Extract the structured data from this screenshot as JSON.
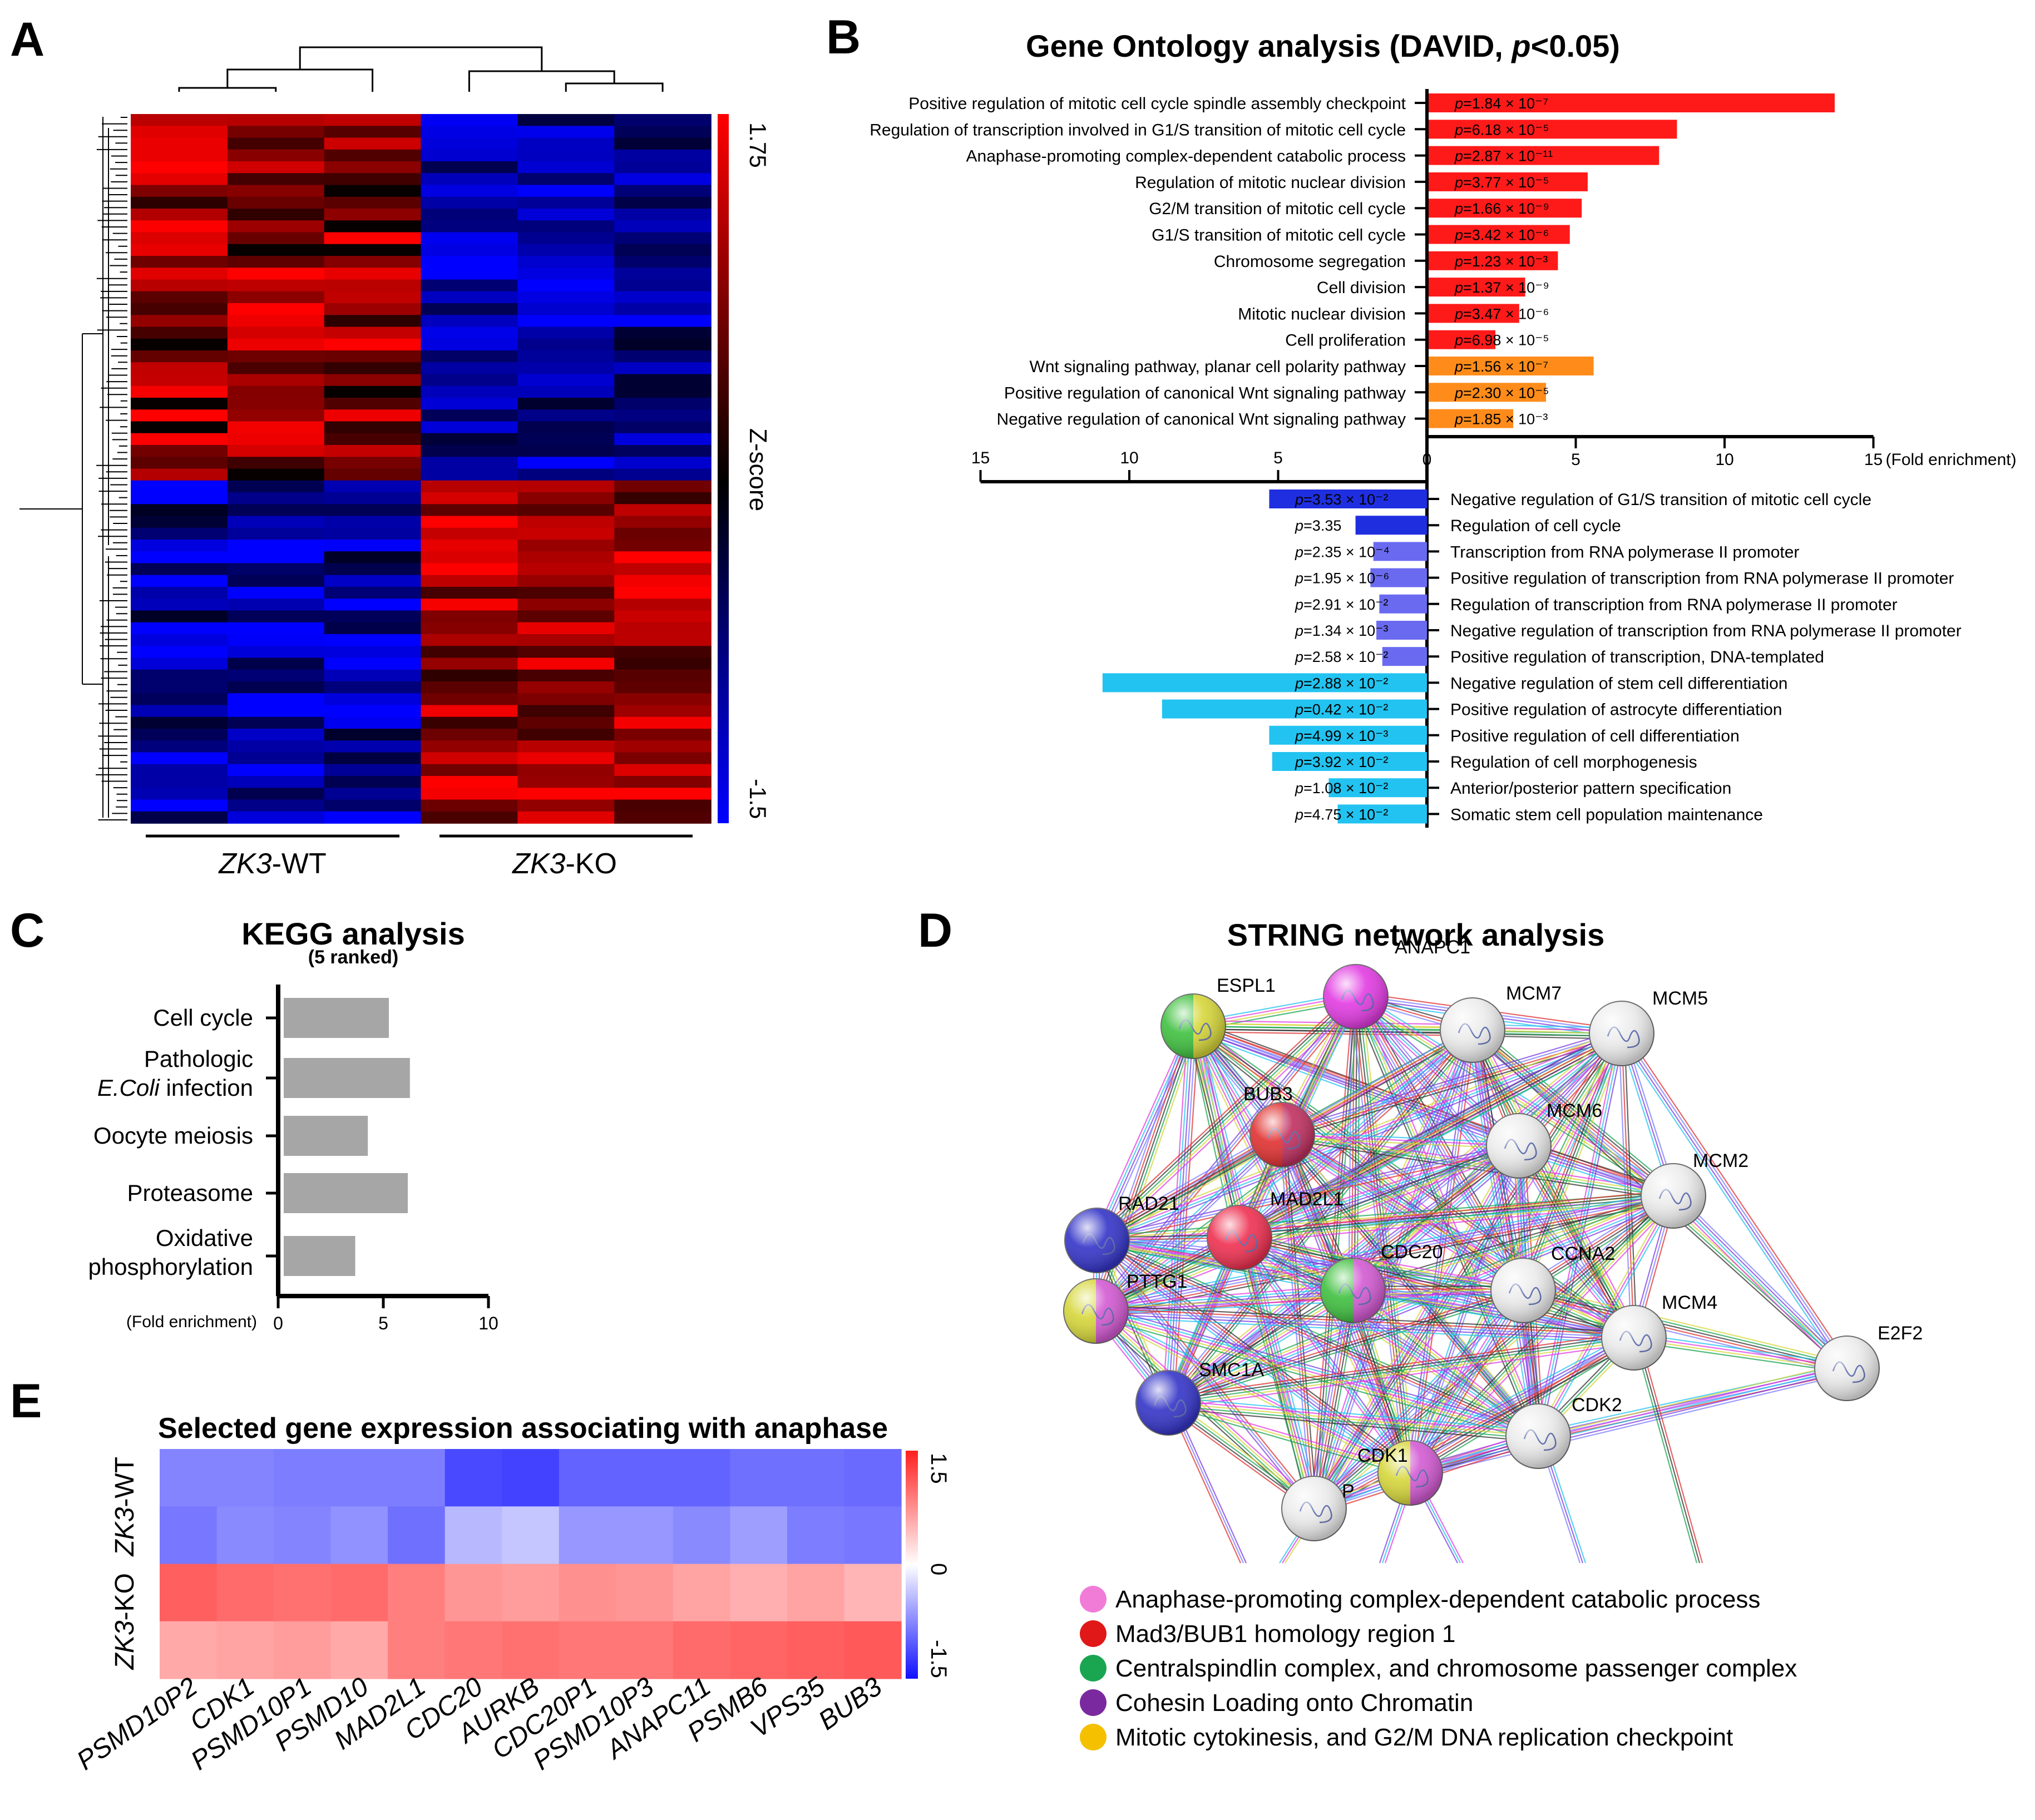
{
  "panel_letters": [
    "A",
    "B",
    "C",
    "D",
    "E"
  ],
  "colors": {
    "red": "#ff1a1a",
    "orange": "#ff8c1a",
    "dark_blue": "#1f2fe0",
    "mid_blue": "#6a6af0",
    "cyan": "#22c3f0",
    "grey_bar": "#a6a6a6"
  },
  "chart_data": [
    {
      "id": "A",
      "type": "heatmap",
      "title": "",
      "groups": [
        "ZK3-WT",
        "ZK3-KO"
      ],
      "group_prefix": "ZK3",
      "group_suffixes": [
        "-WT",
        "-KO"
      ],
      "colorbar": {
        "label": "Z-score",
        "min": -1.5,
        "max": 1.75,
        "min_label": "-1.5",
        "max_label": "1.75"
      },
      "columns": 6,
      "block_structure": "Upper gene cluster high in ZK3-WT and low in ZK3-KO; lower gene cluster low in ZK3-WT and high in ZK3-KO"
    },
    {
      "id": "B",
      "type": "bar",
      "title_prefix": "Gene Ontology analysis (DAVID, ",
      "title_p": "p",
      "title_suffix": "<0.05)",
      "axis_ticks": [
        "15",
        "10",
        "5",
        "0",
        "5",
        "10",
        "15"
      ],
      "axis_unit": "(Fold enrichment)",
      "xlim": [
        0,
        15
      ],
      "upregulated": [
        {
          "term": "Positive regulation of mitotic cell cycle spindle assembly checkpoint",
          "fold": 13.7,
          "p": "=1.84 × 10⁻⁷",
          "class": "red"
        },
        {
          "term": "Regulation of transcription involved in G1/S transition of mitotic cell cycle",
          "fold": 8.4,
          "p": "=6.18 × 10⁻⁵",
          "class": "red"
        },
        {
          "term": "Anaphase-promoting complex-dependent catabolic process",
          "fold": 7.8,
          "p": "=2.87 × 10⁻¹¹",
          "class": "red"
        },
        {
          "term": "Regulation of mitotic nuclear division",
          "fold": 5.4,
          "p": "=3.77 × 10⁻⁵",
          "class": "red"
        },
        {
          "term": "G2/M transition of mitotic cell cycle",
          "fold": 5.2,
          "p": "=1.66 × 10⁻⁹",
          "class": "red"
        },
        {
          "term": "G1/S transition of mitotic cell cycle",
          "fold": 4.8,
          "p": "=3.42 × 10⁻⁶",
          "class": "red"
        },
        {
          "term": "Chromosome segregation",
          "fold": 4.4,
          "p": "=1.23 × 10⁻³",
          "class": "red"
        },
        {
          "term": "Cell division",
          "fold": 3.3,
          "p": "=1.37 × 10⁻⁹",
          "class": "red"
        },
        {
          "term": "Mitotic nuclear division",
          "fold": 3.1,
          "p": "=3.47 × 10⁻⁶",
          "class": "red"
        },
        {
          "term": "Cell proliferation",
          "fold": 2.3,
          "p": "=6.98 × 10⁻⁵",
          "class": "red"
        },
        {
          "term": "Wnt signaling pathway, planar cell polarity pathway",
          "fold": 5.6,
          "p": "=1.56 × 10⁻⁷",
          "class": "orange"
        },
        {
          "term": "Positive regulation of canonical Wnt signaling pathway",
          "fold": 4.0,
          "p": "=2.30 × 10⁻⁵",
          "class": "orange"
        },
        {
          "term": "Negative regulation of canonical Wnt signaling pathway",
          "fold": 2.9,
          "p": "=1.85 × 10⁻³",
          "class": "orange"
        }
      ],
      "downregulated": [
        {
          "term": "Negative regulation of G1/S transition of mitotic cell cycle",
          "fold": 5.3,
          "p": "=3.53 × 10⁻²",
          "class": "dark_blue"
        },
        {
          "term": "Regulation of cell cycle",
          "fold": 2.4,
          "p": "=3.35",
          "class": "dark_blue"
        },
        {
          "term": "Transcription from RNA polymerase II promoter",
          "fold": 1.8,
          "p": "=2.35 × 10⁻⁴",
          "class": "mid_blue"
        },
        {
          "term": "Positive regulation of transcription from RNA polymerase II promoter",
          "fold": 1.9,
          "p": "=1.95 × 10⁻⁶",
          "class": "mid_blue"
        },
        {
          "term": "Regulation of transcription from RNA polymerase II promoter",
          "fold": 1.6,
          "p": "=2.91 × 10⁻²",
          "class": "mid_blue"
        },
        {
          "term": "Negative regulation of transcription from RNA polymerase II promoter",
          "fold": 1.7,
          "p": "=1.34 × 10⁻³",
          "class": "mid_blue"
        },
        {
          "term": "Positive regulation of transcription, DNA-templated",
          "fold": 1.5,
          "p": "=2.58 × 10⁻²",
          "class": "mid_blue"
        },
        {
          "term": "Negative regulation of stem cell differentiation",
          "fold": 10.9,
          "p": "=2.88 × 10⁻²",
          "class": "cyan"
        },
        {
          "term": "Positive regulation of astrocyte differentiation",
          "fold": 8.9,
          "p": "=0.42 × 10⁻²",
          "class": "cyan"
        },
        {
          "term": "Positive regulation of cell differentiation",
          "fold": 5.3,
          "p": "=4.99 × 10⁻³",
          "class": "cyan"
        },
        {
          "term": "Regulation of cell morphogenesis",
          "fold": 5.2,
          "p": "=3.92 × 10⁻²",
          "class": "cyan"
        },
        {
          "term": "Anterior/posterior pattern specification",
          "fold": 3.3,
          "p": "=1.08 × 10⁻²",
          "class": "cyan"
        },
        {
          "term": "Somatic stem cell population maintenance",
          "fold": 3.0,
          "p": "=4.75 × 10⁻²",
          "class": "cyan"
        }
      ]
    },
    {
      "id": "C",
      "type": "bar",
      "title": "KEGG analysis",
      "subtitle": "(5 ranked)",
      "xlabel": "(Fold enrichment)",
      "xlim": [
        0,
        10
      ],
      "x_ticks": [
        0,
        5,
        10
      ],
      "categories": [
        {
          "lines": [
            "Cell cycle"
          ],
          "italic_prefix": "",
          "value": 5.0
        },
        {
          "lines": [
            "Pathologic"
          ],
          "italic_prefix": "E.Coli",
          "second_line_rest": " infection",
          "value": 6.0
        },
        {
          "lines": [
            "Oocyte meiosis"
          ],
          "italic_prefix": "",
          "value": 4.0
        },
        {
          "lines": [
            "Proteasome"
          ],
          "italic_prefix": "",
          "value": 5.9
        },
        {
          "lines": [
            "Oxidative",
            "phosphorylation"
          ],
          "italic_prefix": "",
          "value": 3.4
        }
      ]
    },
    {
      "id": "D",
      "type": "network",
      "title": "STRING network analysis",
      "nodes": [
        {
          "name": "ESPL1",
          "c1": "#3fc03f",
          "c2": "#d6d63a"
        },
        {
          "name": "ANAPC1",
          "c1": "#e23be2",
          "c2": "#e23be2"
        },
        {
          "name": "MCM7",
          "c1": "#ececec",
          "c2": "#ececec"
        },
        {
          "name": "MCM5",
          "c1": "#ececec",
          "c2": "#ececec"
        },
        {
          "name": "BUB3",
          "c1": "#e03030",
          "c2": "#c03060"
        },
        {
          "name": "MCM6",
          "c1": "#ececec",
          "c2": "#ececec"
        },
        {
          "name": "MCM2",
          "c1": "#ececec",
          "c2": "#ececec"
        },
        {
          "name": "RAD21",
          "c1": "#3434c8",
          "c2": "#3434c8"
        },
        {
          "name": "MAD2L1",
          "c1": "#ee3050",
          "c2": "#ee3050"
        },
        {
          "name": "CDC20",
          "c1": "#3fc03f",
          "c2": "#d35ad3"
        },
        {
          "name": "CCNA2",
          "c1": "#ececec",
          "c2": "#ececec"
        },
        {
          "name": "PTTG1",
          "c1": "#d6d63a",
          "c2": "#d35ad3"
        },
        {
          "name": "MCM4",
          "c1": "#ececec",
          "c2": "#ececec"
        },
        {
          "name": "E2F2",
          "c1": "#ececec",
          "c2": "#ececec"
        },
        {
          "name": "SMC1A",
          "c1": "#3434c8",
          "c2": "#3434c8"
        },
        {
          "name": "CDK2",
          "c1": "#ececec",
          "c2": "#ececec"
        },
        {
          "name": "CDK1",
          "c1": "#d6d63a",
          "c2": "#d35ad3"
        },
        {
          "name": "P",
          "c1": "#ececec",
          "c2": "#ececec"
        }
      ],
      "legend": [
        {
          "label": "Anaphase-promoting complex-dependent catabolic process",
          "color": "#f07cd8"
        },
        {
          "label": "Mad3/BUB1 homology region 1",
          "color": "#e01818"
        },
        {
          "label": "Centralspindlin complex, and chromosome passenger complex",
          "color": "#1aa650"
        },
        {
          "label": "Cohesin Loading onto Chromatin",
          "color": "#7a2a9e"
        },
        {
          "label": "Mitotic cytokinesis, and G2/M DNA replication checkpoint",
          "color": "#f4c000"
        }
      ]
    },
    {
      "id": "E",
      "type": "heatmap",
      "title": "Selected gene expression associating with anaphase",
      "rows": [
        "ZK3-WT",
        "ZK3-KO"
      ],
      "row_prefix": "ZK3",
      "row_suffixes": [
        "-WT",
        "-KO"
      ],
      "columns": [
        "PSMD10P2",
        "CDK1",
        "PSMD10P1",
        "PSMD10",
        "MAD2L1",
        "CDC20",
        "AURKB",
        "CDC20P1",
        "PSMD10P3",
        "ANAPC11",
        "PSMB6",
        "VPS35",
        "BUB3"
      ],
      "colorbar": {
        "min": -1.5,
        "max": 1.5,
        "min_label": "-1.5",
        "mid_label": "0",
        "max_label": "1.5"
      },
      "values": [
        [
          -0.95,
          -0.95,
          -1.0,
          -1.0,
          -1.0,
          -1.4,
          -1.45,
          -1.2,
          -1.2,
          -1.2,
          -1.1,
          -1.1,
          -1.15
        ],
        [
          -1.05,
          -0.9,
          -0.95,
          -0.85,
          -1.1,
          -0.55,
          -0.45,
          -0.8,
          -0.8,
          -0.9,
          -0.75,
          -1.0,
          -1.05
        ],
        [
          1.3,
          1.2,
          1.15,
          1.2,
          1.05,
          0.85,
          0.8,
          0.9,
          0.85,
          0.75,
          0.65,
          0.75,
          0.6
        ],
        [
          0.7,
          0.75,
          0.8,
          0.7,
          1.05,
          1.1,
          1.15,
          1.1,
          1.1,
          1.2,
          1.25,
          1.3,
          1.35
        ]
      ]
    }
  ]
}
